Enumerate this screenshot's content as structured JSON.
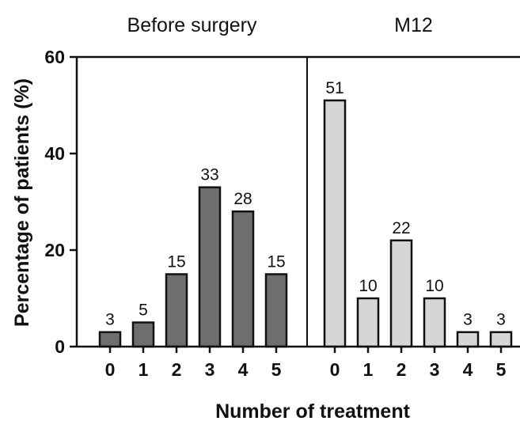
{
  "chart_data": {
    "type": "bar",
    "ylabel": "Percentage of patients (%)",
    "xlabel": "Number of treatment",
    "ylim": [
      0,
      60
    ],
    "yticks": [
      "0",
      "20",
      "40",
      "60"
    ],
    "ytick_values": [
      0,
      20,
      40,
      60
    ],
    "grid": false,
    "panels": [
      {
        "title": "Before surgery",
        "categories": [
          "0",
          "1",
          "2",
          "3",
          "4",
          "5"
        ],
        "values": [
          3,
          5,
          15,
          33,
          28,
          15
        ],
        "color": "#6e6e6e"
      },
      {
        "title": "M12",
        "categories": [
          "0",
          "1",
          "2",
          "3",
          "4",
          "5"
        ],
        "values": [
          51,
          10,
          22,
          10,
          3,
          3
        ],
        "color": "#d6d6d6"
      }
    ]
  }
}
